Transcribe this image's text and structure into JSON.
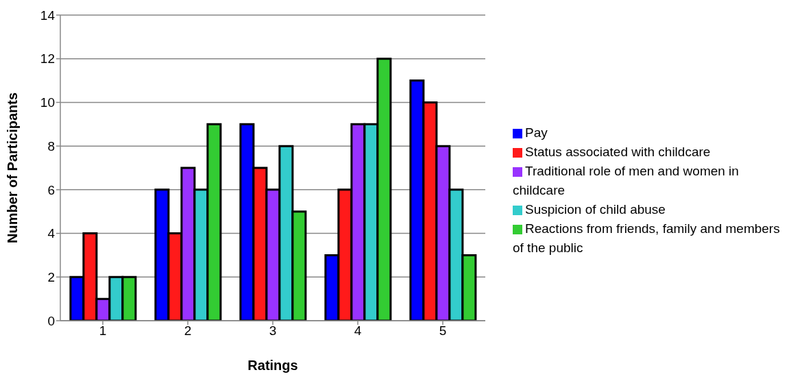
{
  "chart_data": {
    "type": "bar",
    "xlabel": "Ratings",
    "ylabel": "Number of Participants",
    "categories": [
      "1",
      "2",
      "3",
      "4",
      "5"
    ],
    "series": [
      {
        "name": "Pay",
        "color": "#0000ff",
        "values": [
          2,
          6,
          9,
          3,
          11
        ]
      },
      {
        "name": "Status associated with childcare",
        "color": "#ff1a1a",
        "values": [
          4,
          4,
          7,
          6,
          10
        ]
      },
      {
        "name": "Traditional role of men and women in childcare",
        "color": "#9933ff",
        "values": [
          1,
          7,
          6,
          9,
          8
        ]
      },
      {
        "name": "Suspicion of child abuse",
        "color": "#33cccc",
        "values": [
          2,
          6,
          8,
          9,
          6
        ]
      },
      {
        "name": "Reactions from friends, family and members of the public",
        "color": "#33cc33",
        "values": [
          2,
          9,
          5,
          12,
          3
        ]
      }
    ],
    "ylim": [
      0,
      14
    ],
    "yticks": [
      0,
      2,
      4,
      6,
      8,
      10,
      12,
      14
    ],
    "grid": "y",
    "legend": "right"
  }
}
